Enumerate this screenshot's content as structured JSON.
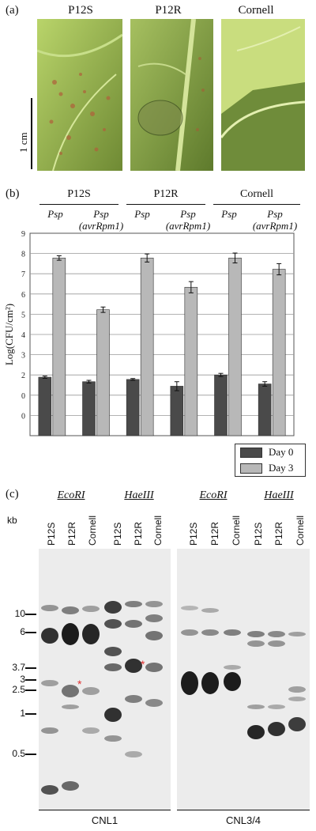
{
  "panel_a": {
    "label": "(a)",
    "photos": [
      "P12S",
      "P12R",
      "Cornell"
    ],
    "scale": "1 cm"
  },
  "panel_b": {
    "label": "(b)",
    "groups": [
      "P12S",
      "P12R",
      "Cornell"
    ],
    "sublabels": [
      {
        "l1": "Psp",
        "l2": ""
      },
      {
        "l1": "Psp",
        "l2": "(avrRpm1)"
      },
      {
        "l1": "Psp",
        "l2": ""
      },
      {
        "l1": "Psp",
        "l2": "(avrRpm1)"
      },
      {
        "l1": "Psp",
        "l2": ""
      },
      {
        "l1": "Psp",
        "l2": "(avrRpm1)"
      }
    ]
  },
  "chart_data": {
    "type": "bar",
    "categories": [
      "P12S Psp",
      "P12S Psp (avrRpm1)",
      "P12R Psp",
      "P12R Psp (avrRpm1)",
      "Cornell Psp",
      "Cornell Psp (avrRpm1)"
    ],
    "series": [
      {
        "name": "Day 0",
        "color": "#4a4a4a",
        "values": [
          2.6,
          2.4,
          2.5,
          2.2,
          2.7,
          2.3
        ],
        "err": [
          0.05,
          0.06,
          0.04,
          0.2,
          0.07,
          0.1
        ]
      },
      {
        "name": "Day 3",
        "color": "#b8b8b8",
        "values": [
          7.9,
          5.6,
          7.9,
          6.6,
          7.9,
          7.4
        ],
        "err": [
          0.1,
          0.12,
          0.18,
          0.25,
          0.22,
          0.25
        ]
      }
    ],
    "ylabel": "Log(CFU/cm²)",
    "yticks": [
      "9",
      "8",
      "7",
      "6",
      "5",
      "4",
      "3",
      "2",
      "0",
      "0"
    ],
    "ylim": [
      0,
      9
    ],
    "grid": true,
    "legend": "bottom-right"
  },
  "panel_c": {
    "label": "(c)",
    "kb_label": "kb",
    "markers": [
      "10",
      "6",
      "3.7",
      "3",
      "2.5",
      "1",
      "0.5"
    ],
    "enzymes": [
      "EcoRI",
      "HaeIII",
      "EcoRI",
      "HaeIII"
    ],
    "lanes": [
      "P12S",
      "P12R",
      "Cornell"
    ],
    "probes": [
      "CNL1",
      "CNL3/4"
    ],
    "star": "*"
  }
}
